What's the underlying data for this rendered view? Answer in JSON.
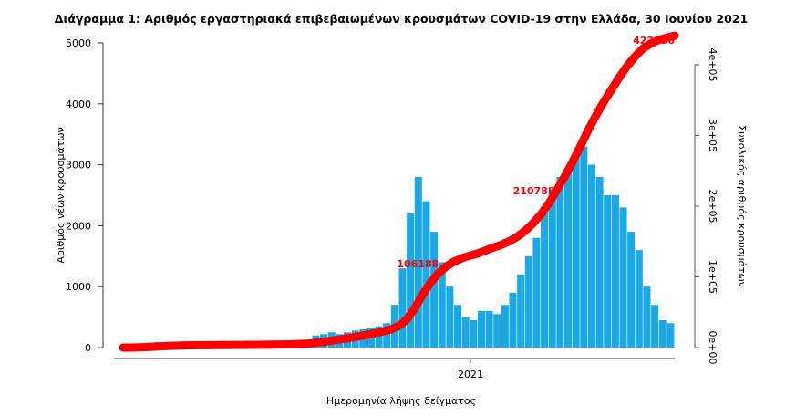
{
  "chart_data": {
    "type": "bar",
    "title": "Διάγραμμα 1: Αριθμός εργαστηριακά επιβεβαιωμένων κρουσμάτων COVID-19 στην Ελλάδα, 30 Ιουνίου 2021",
    "xlabel": "Ημερομηνία λήψης δείγματος",
    "ylabel": "Αριθμός νέων κρουσμάτων",
    "y2label": "Συνολικός αριθμός κρουσμάτων",
    "ylim": [
      0,
      5000
    ],
    "y2lim": [
      0,
      400000
    ],
    "yticks": [
      "0",
      "1000",
      "2000",
      "3000",
      "4000",
      "5000"
    ],
    "y2ticks": [
      "0e+00",
      "1e+05",
      "2e+05",
      "3e+05",
      "4e+05"
    ],
    "xtick": "2021",
    "x_start": "2020-02-26",
    "x_end": "2021-06-30",
    "bar_color": "#1aa9e6",
    "line_color": "#ff0000",
    "values": [
      5,
      30,
      60,
      80,
      90,
      70,
      60,
      50,
      20,
      15,
      10,
      10,
      10,
      15,
      10,
      10,
      15,
      20,
      20,
      25,
      30,
      35,
      60,
      120,
      200,
      220,
      250,
      220,
      250,
      280,
      300,
      330,
      350,
      400,
      700,
      1300,
      2200,
      2800,
      2400,
      1900,
      1400,
      1000,
      700,
      500,
      450,
      600,
      600,
      550,
      700,
      900,
      1200,
      1500,
      1800,
      2200,
      2600,
      2800,
      2900,
      3200,
      3300,
      3000,
      2800,
      2500,
      2500,
      2300,
      1900,
      1600,
      1000,
      700,
      450,
      400
    ],
    "annotations": [
      {
        "label": "106188",
        "date": "2020-11-22"
      },
      {
        "label": "210788",
        "date": "2021-03-05"
      },
      {
        "label": "422456",
        "date": "2021-06-30"
      }
    ]
  }
}
